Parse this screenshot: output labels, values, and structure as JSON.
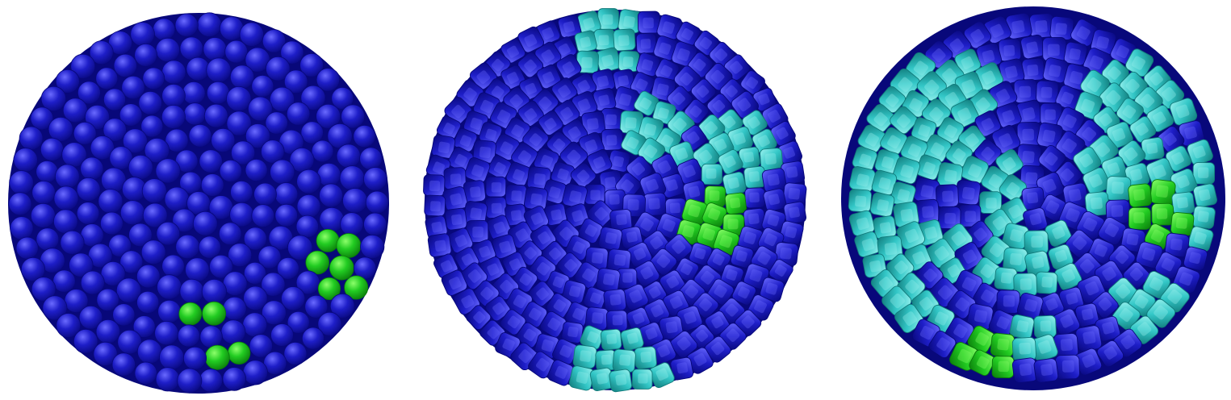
{
  "colors": {
    "background": "#ffffff",
    "blue": "#1e1ec8",
    "blue_dark": "#08087a",
    "blue_light": "#6a6aff",
    "green": "#22cc22",
    "green_dark": "#0a7a0a",
    "green_light": "#8cff6a",
    "cyan": "#33c7c7",
    "cyan_dark": "#107a7a",
    "cyan_light": "#9af2ef"
  },
  "panels": [
    {
      "id": "left",
      "particle_shape": "sphere",
      "composition": {
        "blue": 0.94,
        "green": 0.06,
        "cyan": 0.0
      }
    },
    {
      "id": "middle",
      "particle_shape": "rounded-cube",
      "composition": {
        "blue": 0.86,
        "green": 0.02,
        "cyan": 0.12
      }
    },
    {
      "id": "right",
      "particle_shape": "rounded-cube",
      "composition": {
        "blue": 0.52,
        "green": 0.03,
        "cyan": 0.45
      }
    }
  ]
}
